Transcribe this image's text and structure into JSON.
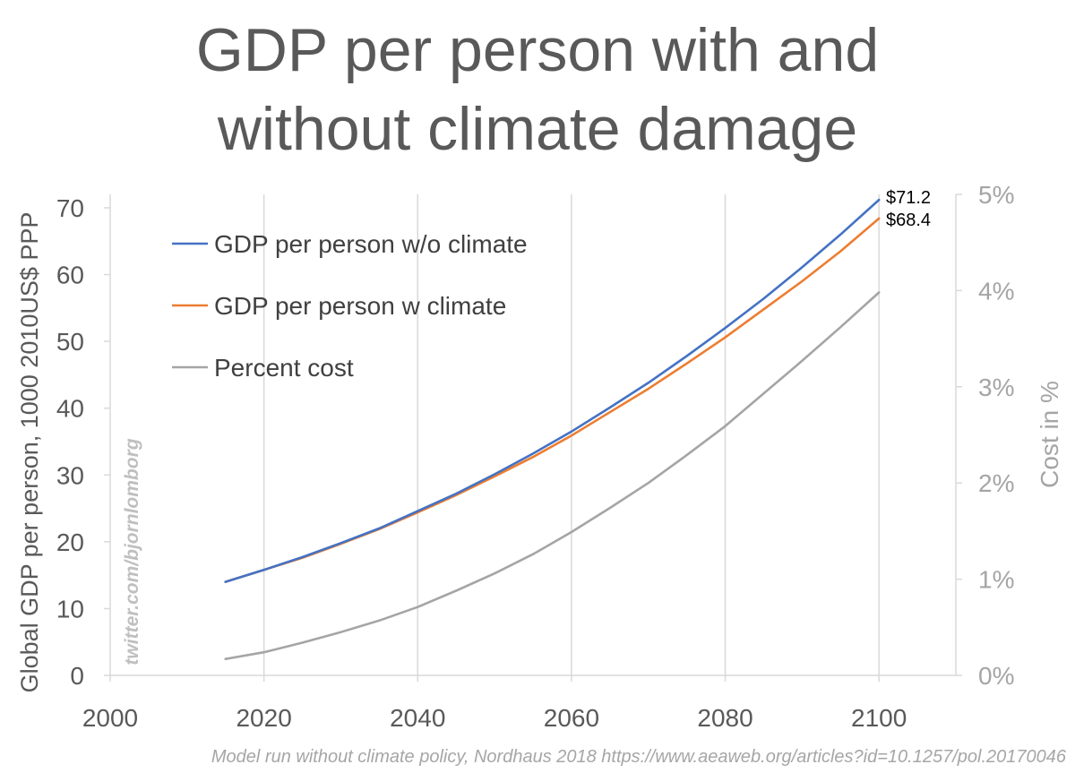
{
  "chart_data": {
    "type": "line",
    "title": [
      "GDP per person with and",
      "without climate damage"
    ],
    "xlabel": "",
    "ylabel": "Global GDP per person, 1000 2010US$ PPP",
    "y2label": "Cost in %",
    "xlim": [
      2000,
      2110
    ],
    "ylim": [
      0,
      70
    ],
    "y2lim": [
      0,
      5
    ],
    "x_ticks": [
      2000,
      2020,
      2040,
      2060,
      2080,
      2100
    ],
    "y_ticks": [
      0,
      10,
      20,
      30,
      40,
      50,
      60,
      70
    ],
    "y2_ticks": [
      "0%",
      "1%",
      "2%",
      "3%",
      "4%",
      "5%"
    ],
    "y2_tick_values": [
      0,
      1,
      2,
      3,
      4,
      5
    ],
    "grid": "vertical",
    "legend_position": "top-left",
    "x": [
      2015,
      2020,
      2025,
      2030,
      2035,
      2040,
      2045,
      2050,
      2055,
      2060,
      2065,
      2070,
      2075,
      2080,
      2085,
      2090,
      2095,
      2100
    ],
    "series": [
      {
        "name": "GDP per person w/o climate",
        "axis": "left",
        "color": "#4472C4",
        "values": [
          14.0,
          15.8,
          17.7,
          19.8,
          22.0,
          24.6,
          27.2,
          30.1,
          33.2,
          36.5,
          40.1,
          43.8,
          47.8,
          52.0,
          56.4,
          61.1,
          66.0,
          71.2
        ]
      },
      {
        "name": "GDP per person w climate",
        "axis": "left",
        "color": "#ED7D31",
        "values": [
          14.0,
          15.8,
          17.6,
          19.7,
          21.9,
          24.4,
          27.0,
          29.8,
          32.7,
          35.9,
          39.4,
          42.9,
          46.7,
          50.6,
          54.8,
          59.0,
          63.5,
          68.4
        ]
      },
      {
        "name": "Percent cost",
        "axis": "right",
        "color": "#A5A5A5",
        "values": [
          0.17,
          0.24,
          0.34,
          0.45,
          0.57,
          0.71,
          0.88,
          1.06,
          1.26,
          1.49,
          1.74,
          2.0,
          2.29,
          2.59,
          2.93,
          3.27,
          3.62,
          3.98
        ]
      }
    ],
    "annotations": [
      "$71.2",
      "$68.4"
    ],
    "watermark": "twitter.com/bjornlomborg",
    "source": "Model run without climate policy, Nordhaus 2018 https://www.aeaweb.org/articles?id=10.1257/pol.20170046"
  }
}
